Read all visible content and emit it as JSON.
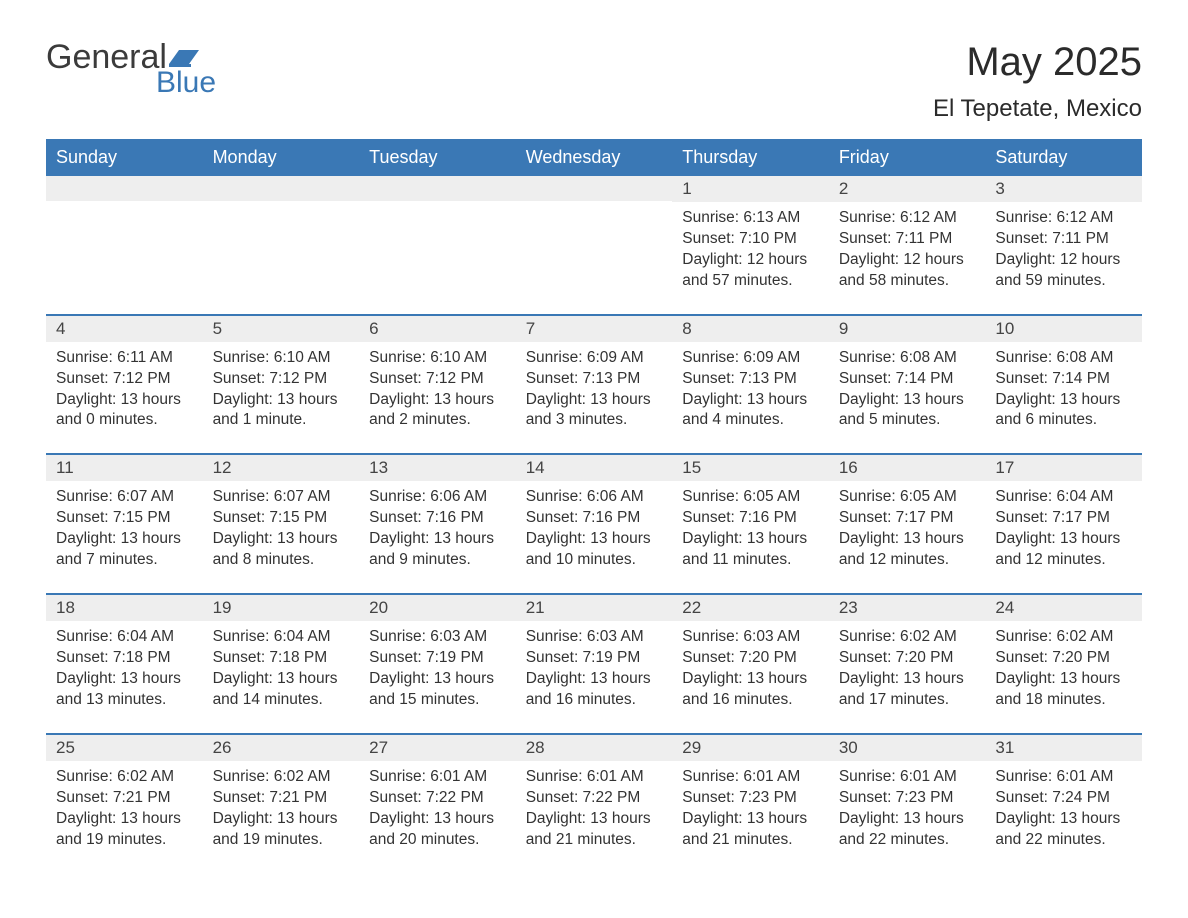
{
  "logo": {
    "text_general": "General",
    "text_blue": "Blue",
    "accent_color": "#3a78b5"
  },
  "title": "May 2025",
  "location": "El Tepetate, Mexico",
  "colors": {
    "header_bg": "#3a78b5",
    "header_text": "#ffffff",
    "daybar_bg": "#eeeeee",
    "body_text": "#333333",
    "rule": "#3a78b5",
    "page_bg": "#ffffff"
  },
  "day_headers": [
    "Sunday",
    "Monday",
    "Tuesday",
    "Wednesday",
    "Thursday",
    "Friday",
    "Saturday"
  ],
  "weeks": [
    [
      {
        "n": "",
        "sunrise": "",
        "sunset": "",
        "daylight": ""
      },
      {
        "n": "",
        "sunrise": "",
        "sunset": "",
        "daylight": ""
      },
      {
        "n": "",
        "sunrise": "",
        "sunset": "",
        "daylight": ""
      },
      {
        "n": "",
        "sunrise": "",
        "sunset": "",
        "daylight": ""
      },
      {
        "n": "1",
        "sunrise": "Sunrise: 6:13 AM",
        "sunset": "Sunset: 7:10 PM",
        "daylight": "Daylight: 12 hours and 57 minutes."
      },
      {
        "n": "2",
        "sunrise": "Sunrise: 6:12 AM",
        "sunset": "Sunset: 7:11 PM",
        "daylight": "Daylight: 12 hours and 58 minutes."
      },
      {
        "n": "3",
        "sunrise": "Sunrise: 6:12 AM",
        "sunset": "Sunset: 7:11 PM",
        "daylight": "Daylight: 12 hours and 59 minutes."
      }
    ],
    [
      {
        "n": "4",
        "sunrise": "Sunrise: 6:11 AM",
        "sunset": "Sunset: 7:12 PM",
        "daylight": "Daylight: 13 hours and 0 minutes."
      },
      {
        "n": "5",
        "sunrise": "Sunrise: 6:10 AM",
        "sunset": "Sunset: 7:12 PM",
        "daylight": "Daylight: 13 hours and 1 minute."
      },
      {
        "n": "6",
        "sunrise": "Sunrise: 6:10 AM",
        "sunset": "Sunset: 7:12 PM",
        "daylight": "Daylight: 13 hours and 2 minutes."
      },
      {
        "n": "7",
        "sunrise": "Sunrise: 6:09 AM",
        "sunset": "Sunset: 7:13 PM",
        "daylight": "Daylight: 13 hours and 3 minutes."
      },
      {
        "n": "8",
        "sunrise": "Sunrise: 6:09 AM",
        "sunset": "Sunset: 7:13 PM",
        "daylight": "Daylight: 13 hours and 4 minutes."
      },
      {
        "n": "9",
        "sunrise": "Sunrise: 6:08 AM",
        "sunset": "Sunset: 7:14 PM",
        "daylight": "Daylight: 13 hours and 5 minutes."
      },
      {
        "n": "10",
        "sunrise": "Sunrise: 6:08 AM",
        "sunset": "Sunset: 7:14 PM",
        "daylight": "Daylight: 13 hours and 6 minutes."
      }
    ],
    [
      {
        "n": "11",
        "sunrise": "Sunrise: 6:07 AM",
        "sunset": "Sunset: 7:15 PM",
        "daylight": "Daylight: 13 hours and 7 minutes."
      },
      {
        "n": "12",
        "sunrise": "Sunrise: 6:07 AM",
        "sunset": "Sunset: 7:15 PM",
        "daylight": "Daylight: 13 hours and 8 minutes."
      },
      {
        "n": "13",
        "sunrise": "Sunrise: 6:06 AM",
        "sunset": "Sunset: 7:16 PM",
        "daylight": "Daylight: 13 hours and 9 minutes."
      },
      {
        "n": "14",
        "sunrise": "Sunrise: 6:06 AM",
        "sunset": "Sunset: 7:16 PM",
        "daylight": "Daylight: 13 hours and 10 minutes."
      },
      {
        "n": "15",
        "sunrise": "Sunrise: 6:05 AM",
        "sunset": "Sunset: 7:16 PM",
        "daylight": "Daylight: 13 hours and 11 minutes."
      },
      {
        "n": "16",
        "sunrise": "Sunrise: 6:05 AM",
        "sunset": "Sunset: 7:17 PM",
        "daylight": "Daylight: 13 hours and 12 minutes."
      },
      {
        "n": "17",
        "sunrise": "Sunrise: 6:04 AM",
        "sunset": "Sunset: 7:17 PM",
        "daylight": "Daylight: 13 hours and 12 minutes."
      }
    ],
    [
      {
        "n": "18",
        "sunrise": "Sunrise: 6:04 AM",
        "sunset": "Sunset: 7:18 PM",
        "daylight": "Daylight: 13 hours and 13 minutes."
      },
      {
        "n": "19",
        "sunrise": "Sunrise: 6:04 AM",
        "sunset": "Sunset: 7:18 PM",
        "daylight": "Daylight: 13 hours and 14 minutes."
      },
      {
        "n": "20",
        "sunrise": "Sunrise: 6:03 AM",
        "sunset": "Sunset: 7:19 PM",
        "daylight": "Daylight: 13 hours and 15 minutes."
      },
      {
        "n": "21",
        "sunrise": "Sunrise: 6:03 AM",
        "sunset": "Sunset: 7:19 PM",
        "daylight": "Daylight: 13 hours and 16 minutes."
      },
      {
        "n": "22",
        "sunrise": "Sunrise: 6:03 AM",
        "sunset": "Sunset: 7:20 PM",
        "daylight": "Daylight: 13 hours and 16 minutes."
      },
      {
        "n": "23",
        "sunrise": "Sunrise: 6:02 AM",
        "sunset": "Sunset: 7:20 PM",
        "daylight": "Daylight: 13 hours and 17 minutes."
      },
      {
        "n": "24",
        "sunrise": "Sunrise: 6:02 AM",
        "sunset": "Sunset: 7:20 PM",
        "daylight": "Daylight: 13 hours and 18 minutes."
      }
    ],
    [
      {
        "n": "25",
        "sunrise": "Sunrise: 6:02 AM",
        "sunset": "Sunset: 7:21 PM",
        "daylight": "Daylight: 13 hours and 19 minutes."
      },
      {
        "n": "26",
        "sunrise": "Sunrise: 6:02 AM",
        "sunset": "Sunset: 7:21 PM",
        "daylight": "Daylight: 13 hours and 19 minutes."
      },
      {
        "n": "27",
        "sunrise": "Sunrise: 6:01 AM",
        "sunset": "Sunset: 7:22 PM",
        "daylight": "Daylight: 13 hours and 20 minutes."
      },
      {
        "n": "28",
        "sunrise": "Sunrise: 6:01 AM",
        "sunset": "Sunset: 7:22 PM",
        "daylight": "Daylight: 13 hours and 21 minutes."
      },
      {
        "n": "29",
        "sunrise": "Sunrise: 6:01 AM",
        "sunset": "Sunset: 7:23 PM",
        "daylight": "Daylight: 13 hours and 21 minutes."
      },
      {
        "n": "30",
        "sunrise": "Sunrise: 6:01 AM",
        "sunset": "Sunset: 7:23 PM",
        "daylight": "Daylight: 13 hours and 22 minutes."
      },
      {
        "n": "31",
        "sunrise": "Sunrise: 6:01 AM",
        "sunset": "Sunset: 7:24 PM",
        "daylight": "Daylight: 13 hours and 22 minutes."
      }
    ]
  ]
}
